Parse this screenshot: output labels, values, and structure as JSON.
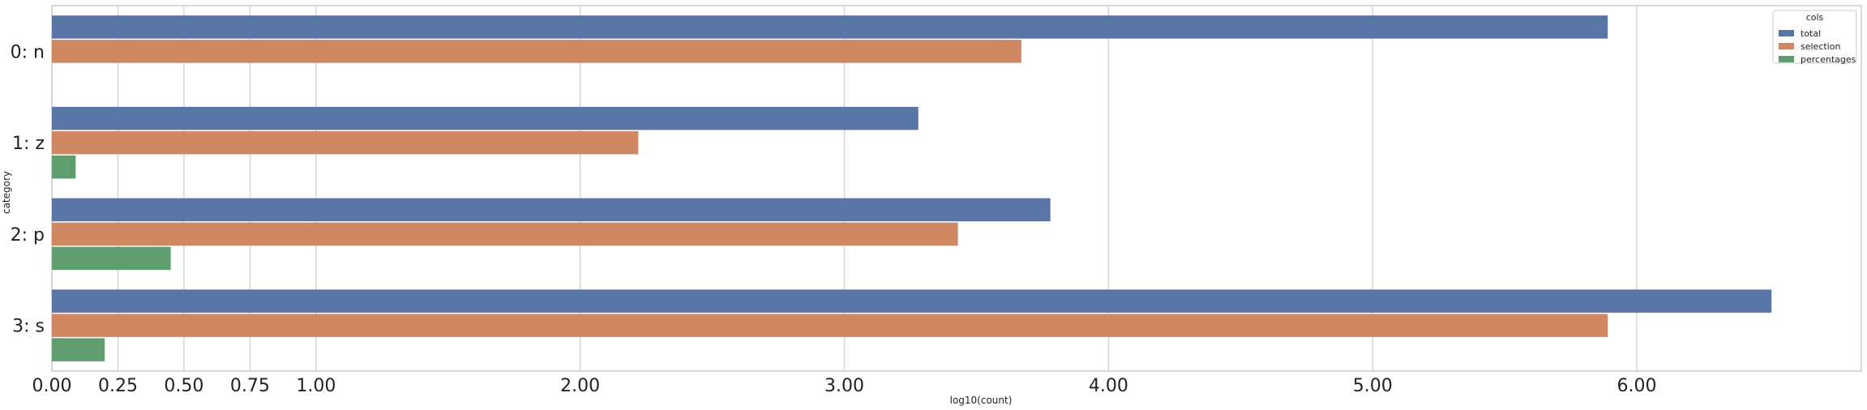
{
  "chart_data": {
    "type": "bar",
    "orientation": "horizontal",
    "categories": [
      "0: n",
      "1: z",
      "2: p",
      "3: s"
    ],
    "series": [
      {
        "name": "total",
        "values": [
          5.89,
          3.28,
          3.78,
          6.51
        ]
      },
      {
        "name": "selection",
        "values": [
          3.67,
          2.22,
          3.43,
          5.89
        ]
      },
      {
        "name": "percentages",
        "values": [
          0.0,
          0.09,
          0.45,
          0.2
        ]
      }
    ],
    "xlabel": "log10(count)",
    "ylabel": "category",
    "xlim": [
      0,
      6.85
    ],
    "x_ticks": [
      0,
      0.25,
      0.5,
      0.75,
      1,
      2,
      3,
      4,
      5,
      6
    ],
    "x_tick_labels": [
      "0.00",
      "0.25",
      "0.50",
      "0.75",
      "1.00",
      "2.00",
      "3.00",
      "4.00",
      "5.00",
      "6.00"
    ],
    "grid": "x",
    "legend": {
      "title": "cols",
      "position": "top-right"
    },
    "colors": {
      "total": "#5875a6",
      "selection": "#cf8862",
      "percentages": "#5e9e6e"
    }
  }
}
